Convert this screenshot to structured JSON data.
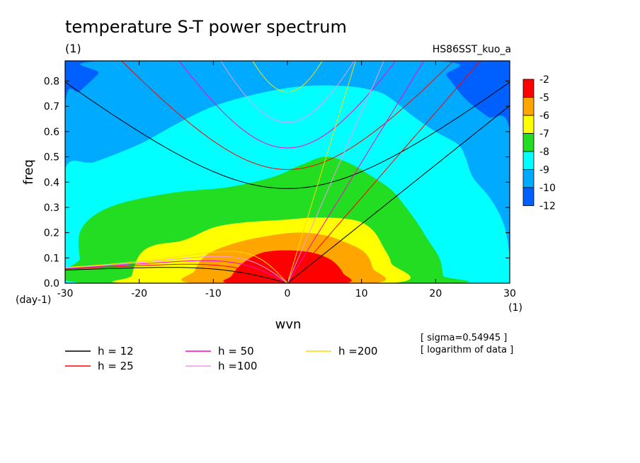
{
  "chart_data": {
    "type": "heatmap",
    "title": "temperature S-T power spectrum",
    "subtitle": "(1)",
    "run_label": "HS86SST_kuo_a",
    "xlabel": "wvn",
    "ylabel": "freq",
    "x_unit": "(1)",
    "y_unit": "(day-1)",
    "xlim": [
      -30,
      30
    ],
    "ylim": [
      0,
      0.88
    ],
    "x_ticks": [
      -30,
      -20,
      -10,
      0,
      10,
      20,
      30
    ],
    "y_ticks": [
      0.0,
      0.1,
      0.2,
      0.3,
      0.4,
      0.5,
      0.6,
      0.7,
      0.8
    ],
    "notes": [
      "[ sigma=0.54945 ]",
      "[ logarithm of data ]"
    ],
    "colorbar": {
      "labels": [
        "-2",
        "-5",
        "-6",
        "-7",
        "-8",
        "-9",
        "-10",
        "-12"
      ],
      "colors": [
        "#ff0000",
        "#ffa500",
        "#ffff00",
        "#22dd22",
        "#00ffff",
        "#00aaff",
        "#0060ff"
      ]
    },
    "filled_levels": [
      {
        "level": "-12",
        "color": "#0060ff",
        "points": [
          [
            -30,
            0.88
          ],
          [
            30,
            0.88
          ],
          [
            30,
            0
          ],
          [
            -30,
            0
          ]
        ]
      },
      {
        "level": "-10",
        "color": "#00aaff",
        "points": [
          [
            -30,
            0.7
          ],
          [
            -28,
            0.76
          ],
          [
            -25.5,
            0.83
          ],
          [
            -24.5,
            0.88
          ],
          [
            19.5,
            0.88
          ],
          [
            21.5,
            0.82
          ],
          [
            24,
            0.73
          ],
          [
            27,
            0.66
          ],
          [
            30,
            0.6
          ],
          [
            30,
            0
          ],
          [
            -30,
            0
          ]
        ]
      },
      {
        "level": "-9",
        "color": "#00ffff",
        "points": [
          [
            -30,
            0.45
          ],
          [
            -26,
            0.48
          ],
          [
            -20,
            0.55
          ],
          [
            -15,
            0.63
          ],
          [
            -10,
            0.7
          ],
          [
            -4,
            0.75
          ],
          [
            2,
            0.78
          ],
          [
            8,
            0.78
          ],
          [
            12,
            0.76
          ],
          [
            14,
            0.73
          ],
          [
            17,
            0.66
          ],
          [
            20,
            0.6
          ],
          [
            23,
            0.55
          ],
          [
            24,
            0.5
          ],
          [
            25,
            0.42
          ],
          [
            27,
            0.35
          ],
          [
            28.5,
            0.28
          ],
          [
            29.5,
            0.2
          ],
          [
            30,
            0.08
          ],
          [
            29.5,
            0
          ],
          [
            -30,
            0
          ],
          [
            -30,
            0.08
          ]
        ]
      },
      {
        "level": "-8",
        "color": "#22dd22",
        "points": [
          [
            -27,
            0
          ],
          [
            -28,
            0.1
          ],
          [
            -28,
            0.2
          ],
          [
            -26,
            0.27
          ],
          [
            -22,
            0.32
          ],
          [
            -15,
            0.36
          ],
          [
            -8,
            0.38
          ],
          [
            -2,
            0.42
          ],
          [
            2,
            0.47
          ],
          [
            5,
            0.5
          ],
          [
            8,
            0.48
          ],
          [
            11,
            0.43
          ],
          [
            14,
            0.37
          ],
          [
            16,
            0.3
          ],
          [
            17.5,
            0.24
          ],
          [
            19,
            0.17
          ],
          [
            20.5,
            0.1
          ],
          [
            21,
            0.03
          ],
          [
            21,
            0
          ]
        ]
      },
      {
        "level": "-7",
        "color": "#ffff00",
        "points": [
          [
            -21,
            0
          ],
          [
            -21,
            0.03
          ],
          [
            -20,
            0.11
          ],
          [
            -18,
            0.15
          ],
          [
            -14,
            0.17
          ],
          [
            -10,
            0.22
          ],
          [
            -6,
            0.24
          ],
          [
            -1,
            0.25
          ],
          [
            4,
            0.26
          ],
          [
            9,
            0.25
          ],
          [
            11.5,
            0.21
          ],
          [
            13,
            0.14
          ],
          [
            14,
            0.08
          ],
          [
            14,
            0
          ]
        ]
      },
      {
        "level": "-6",
        "color": "#ffa500",
        "points": [
          [
            -12.5,
            0
          ],
          [
            -12.5,
            0.05
          ],
          [
            -11,
            0.11
          ],
          [
            -8,
            0.15
          ],
          [
            -4,
            0.18
          ],
          [
            1,
            0.2
          ],
          [
            5,
            0.19
          ],
          [
            8,
            0.16
          ],
          [
            10.5,
            0.12
          ],
          [
            11.5,
            0.06
          ],
          [
            11.5,
            0
          ]
        ]
      },
      {
        "level": "-5",
        "color": "#ff0000",
        "points": [
          [
            -7.5,
            0
          ],
          [
            -7.5,
            0.03
          ],
          [
            -6,
            0.08
          ],
          [
            -3.5,
            0.12
          ],
          [
            0,
            0.13
          ],
          [
            3.5,
            0.12
          ],
          [
            6,
            0.09
          ],
          [
            7.5,
            0.04
          ],
          [
            7.5,
            0
          ]
        ]
      }
    ],
    "series": [
      {
        "name": "h = 12",
        "color": "#000000"
      },
      {
        "name": "h = 25",
        "color": "#ff0000"
      },
      {
        "name": "h = 50",
        "color": "#ff00cc"
      },
      {
        "name": "h =100",
        "color": "#ee99ee"
      },
      {
        "name": "h =200",
        "color": "#ffdd00"
      }
    ]
  }
}
